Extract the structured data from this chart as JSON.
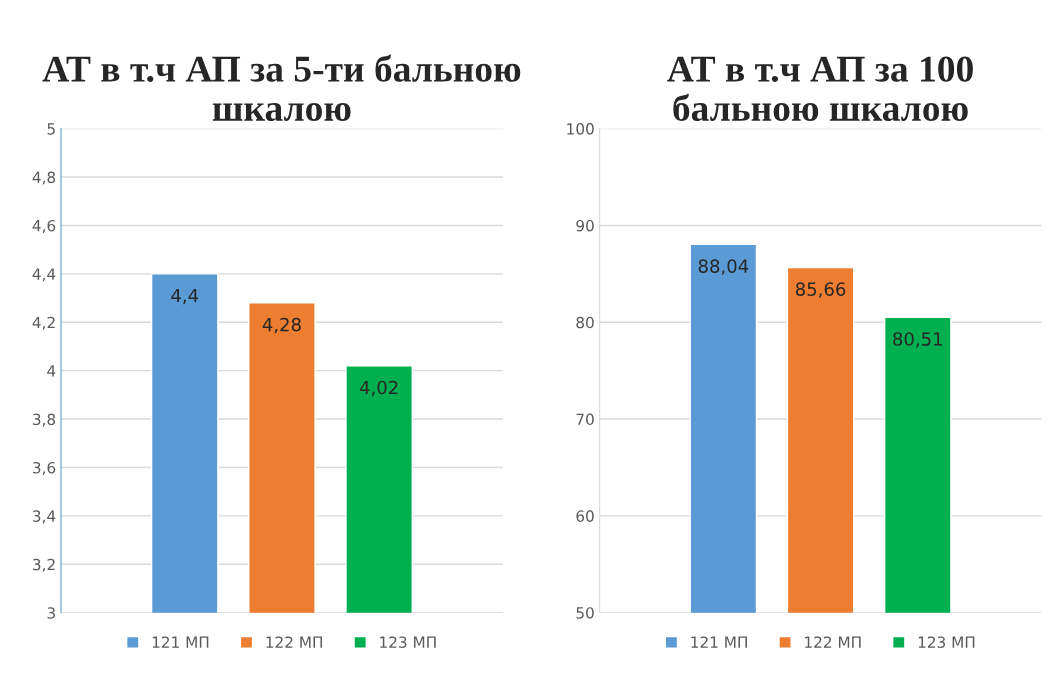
{
  "chart_data": [
    {
      "type": "bar",
      "title": "АТ в т.ч АП за 5-ти бальною шкалою",
      "categories": [
        null
      ],
      "series": [
        {
          "name": "121 МП",
          "color": "#5b9bd5",
          "values": [
            4.4
          ]
        },
        {
          "name": "122 МП",
          "color": "#ed7d31",
          "values": [
            4.28
          ]
        },
        {
          "name": "123 МП",
          "color": "#00b050",
          "values": [
            4.02
          ]
        }
      ],
      "ylim": [
        3,
        5
      ],
      "yticks": [
        {
          "value": 3,
          "label": "3"
        },
        {
          "value": 3.2,
          "label": "3,2"
        },
        {
          "value": 3.4,
          "label": "3,4"
        },
        {
          "value": 3.6,
          "label": "3,6"
        },
        {
          "value": 3.8,
          "label": "3,8"
        },
        {
          "value": 4,
          "label": "4"
        },
        {
          "value": 4.2,
          "label": "4,2"
        },
        {
          "value": 4.4,
          "label": "4,4"
        },
        {
          "value": 4.6,
          "label": "4,6"
        },
        {
          "value": 4.8,
          "label": "4,8"
        },
        {
          "value": 5,
          "label": "5"
        }
      ],
      "value_labels": [
        "4,4",
        "4,28",
        "4,02"
      ],
      "grid": "y",
      "legend": "bottom"
    },
    {
      "type": "bar",
      "title": "АТ в т.ч АП за 100 бальною шкалою",
      "categories": [
        null
      ],
      "series": [
        {
          "name": "121 МП",
          "color": "#5b9bd5",
          "values": [
            88.04
          ]
        },
        {
          "name": "122 МП",
          "color": "#ed7d31",
          "values": [
            85.66
          ]
        },
        {
          "name": "123 МП",
          "color": "#00b050",
          "values": [
            80.51
          ]
        }
      ],
      "ylim": [
        50,
        100
      ],
      "yticks": [
        50,
        60,
        70,
        80,
        90,
        100
      ],
      "value_labels": [
        "88,04",
        "85,66",
        "80,51"
      ],
      "grid": "y",
      "legend": "bottom"
    }
  ]
}
